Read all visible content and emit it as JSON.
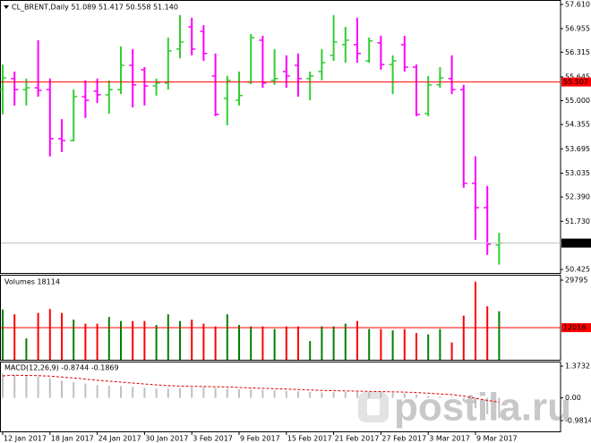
{
  "chart_data": [
    {
      "type": "ohlc",
      "title": "CL_BRENT,Daily 51.089 51.417 50.558 51.140",
      "categories": [
        "12 Jan 2017",
        null,
        null,
        null,
        "18 Jan 2017",
        null,
        null,
        null,
        "24 Jan 2017",
        null,
        null,
        null,
        "30 Jan 2017",
        null,
        null,
        null,
        "3 Feb 2017",
        null,
        null,
        null,
        "9 Feb 2017",
        null,
        null,
        null,
        "15 Feb 2017",
        null,
        null,
        null,
        "21 Feb 2017",
        null,
        null,
        null,
        "27 Feb 2017",
        null,
        null,
        null,
        "3 Mar 2017",
        null,
        null,
        null,
        "9 Mar 2017",
        null,
        null
      ],
      "open": [
        55.3,
        55.6,
        55.3,
        55.35,
        55.3,
        53.97,
        53.92,
        55.11,
        55.26,
        55.16,
        55.3,
        55.96,
        55.84,
        55.4,
        55.48,
        56.4,
        57.0,
        56.88,
        55.67,
        55.06,
        55.01,
        55.5,
        56.64,
        55.55,
        55.79,
        55.96,
        55.6,
        55.79,
        56.23,
        56.52,
        56.52,
        56.08,
        56.57,
        55.98,
        56.52,
        55.91,
        54.65,
        55.43,
        55.6,
        55.3,
        52.76,
        52.1,
        51.089
      ],
      "high": [
        55.98,
        55.79,
        55.6,
        56.64,
        55.6,
        54.5,
        55.3,
        55.55,
        55.6,
        55.55,
        56.47,
        56.4,
        55.91,
        55.6,
        56.71,
        57.32,
        57.25,
        57.05,
        56.28,
        55.67,
        55.79,
        56.81,
        56.76,
        56.4,
        56.23,
        56.28,
        55.79,
        56.4,
        57.32,
        57.0,
        57.25,
        56.71,
        56.76,
        56.23,
        56.76,
        55.98,
        55.67,
        55.91,
        56.23,
        55.43,
        53.49,
        52.69,
        51.417
      ],
      "low": [
        54.63,
        54.87,
        54.87,
        55.11,
        53.49,
        53.61,
        53.9,
        54.53,
        54.94,
        54.65,
        55.18,
        54.82,
        54.87,
        55.14,
        55.3,
        56.15,
        56.23,
        56.08,
        54.58,
        54.33,
        54.87,
        55.45,
        55.35,
        55.43,
        55.35,
        55.11,
        55.01,
        55.55,
        56.08,
        56.03,
        56.03,
        56.03,
        55.84,
        55.18,
        55.79,
        54.58,
        54.58,
        55.35,
        55.18,
        52.64,
        51.23,
        50.82,
        50.558
      ],
      "close": [
        55.62,
        55.3,
        55.35,
        55.28,
        53.97,
        53.92,
        55.11,
        55.01,
        55.16,
        55.3,
        55.96,
        55.43,
        55.4,
        55.48,
        56.35,
        56.59,
        56.4,
        56.28,
        54.63,
        55.55,
        55.14,
        56.71,
        55.48,
        55.6,
        55.67,
        55.6,
        55.67,
        56.03,
        56.59,
        56.64,
        56.28,
        56.62,
        55.98,
        56.08,
        55.91,
        54.63,
        55.43,
        55.62,
        55.3,
        52.76,
        52.1,
        51.11,
        51.14
      ],
      "up_color": "#32cd32",
      "down_color": "#ff00ff",
      "ylim": [
        50.33,
        57.73
      ],
      "yticks": [
        {
          "value": 57.61,
          "label": "57.610"
        },
        56.955,
        56.315,
        55.645,
        {
          "value": 55.0,
          "label": "55.000"
        },
        54.355,
        53.695,
        53.035,
        {
          "value": 52.39,
          "label": "52.390"
        },
        {
          "value": 51.73,
          "label": "51.730"
        },
        50.425
      ],
      "level": 55.507,
      "level_color": "#ff0000",
      "last_price": {
        "value": 51.14,
        "label": "51.140"
      },
      "watermark": "postila.ru"
    },
    {
      "type": "volume",
      "title": "Volumes 18114",
      "values": [
        18800,
        17000,
        8000,
        17500,
        19000,
        17500,
        15000,
        13500,
        13500,
        16000,
        14500,
        14500,
        14500,
        13000,
        17000,
        14500,
        15000,
        13500,
        12500,
        17000,
        13000,
        12500,
        12500,
        11500,
        12500,
        12500,
        7000,
        12500,
        12500,
        13500,
        14500,
        11500,
        11500,
        11000,
        11500,
        10000,
        9500,
        11500,
        6500,
        16500,
        29200,
        20000,
        18114
      ],
      "up_color": "#008000",
      "down_color": "#ff0000",
      "ylim": [
        0,
        31800
      ],
      "yticks": [
        29795
      ],
      "level": 12016,
      "level_color": "#ff0000"
    },
    {
      "type": "macd",
      "title": "MACD(12,26,9) -0.8744 -0.1869",
      "series": [
        {
          "name": "MACD",
          "color": "#c0c0c0",
          "values": [
            1.05,
            1.0,
            0.95,
            0.92,
            0.85,
            0.75,
            0.68,
            0.62,
            0.56,
            0.52,
            0.5,
            0.47,
            0.44,
            0.41,
            0.4,
            0.42,
            0.45,
            0.47,
            0.44,
            0.4,
            0.37,
            0.36,
            0.34,
            0.32,
            0.3,
            0.28,
            0.26,
            0.24,
            0.25,
            0.26,
            0.26,
            0.25,
            0.24,
            0.22,
            0.2,
            0.14,
            0.08,
            0.05,
            0.03,
            -0.15,
            -0.45,
            -0.7,
            -0.8744
          ]
        },
        {
          "name": "Signal",
          "color": "#e00000",
          "values": [
            0.95,
            0.98,
            0.97,
            0.96,
            0.94,
            0.9,
            0.86,
            0.81,
            0.76,
            0.72,
            0.68,
            0.64,
            0.6,
            0.56,
            0.53,
            0.51,
            0.5,
            0.49,
            0.48,
            0.47,
            0.45,
            0.43,
            0.41,
            0.4,
            0.38,
            0.36,
            0.34,
            0.32,
            0.31,
            0.3,
            0.29,
            0.28,
            0.27,
            0.26,
            0.25,
            0.23,
            0.2,
            0.17,
            0.14,
            0.08,
            -0.02,
            -0.11,
            -0.1869
          ]
        }
      ],
      "ylim": [
        -1.45,
        1.57
      ],
      "yticks": [
        1.3732,
        {
          "value": 0,
          "label": "0.00"
        },
        -0.9814
      ]
    }
  ]
}
